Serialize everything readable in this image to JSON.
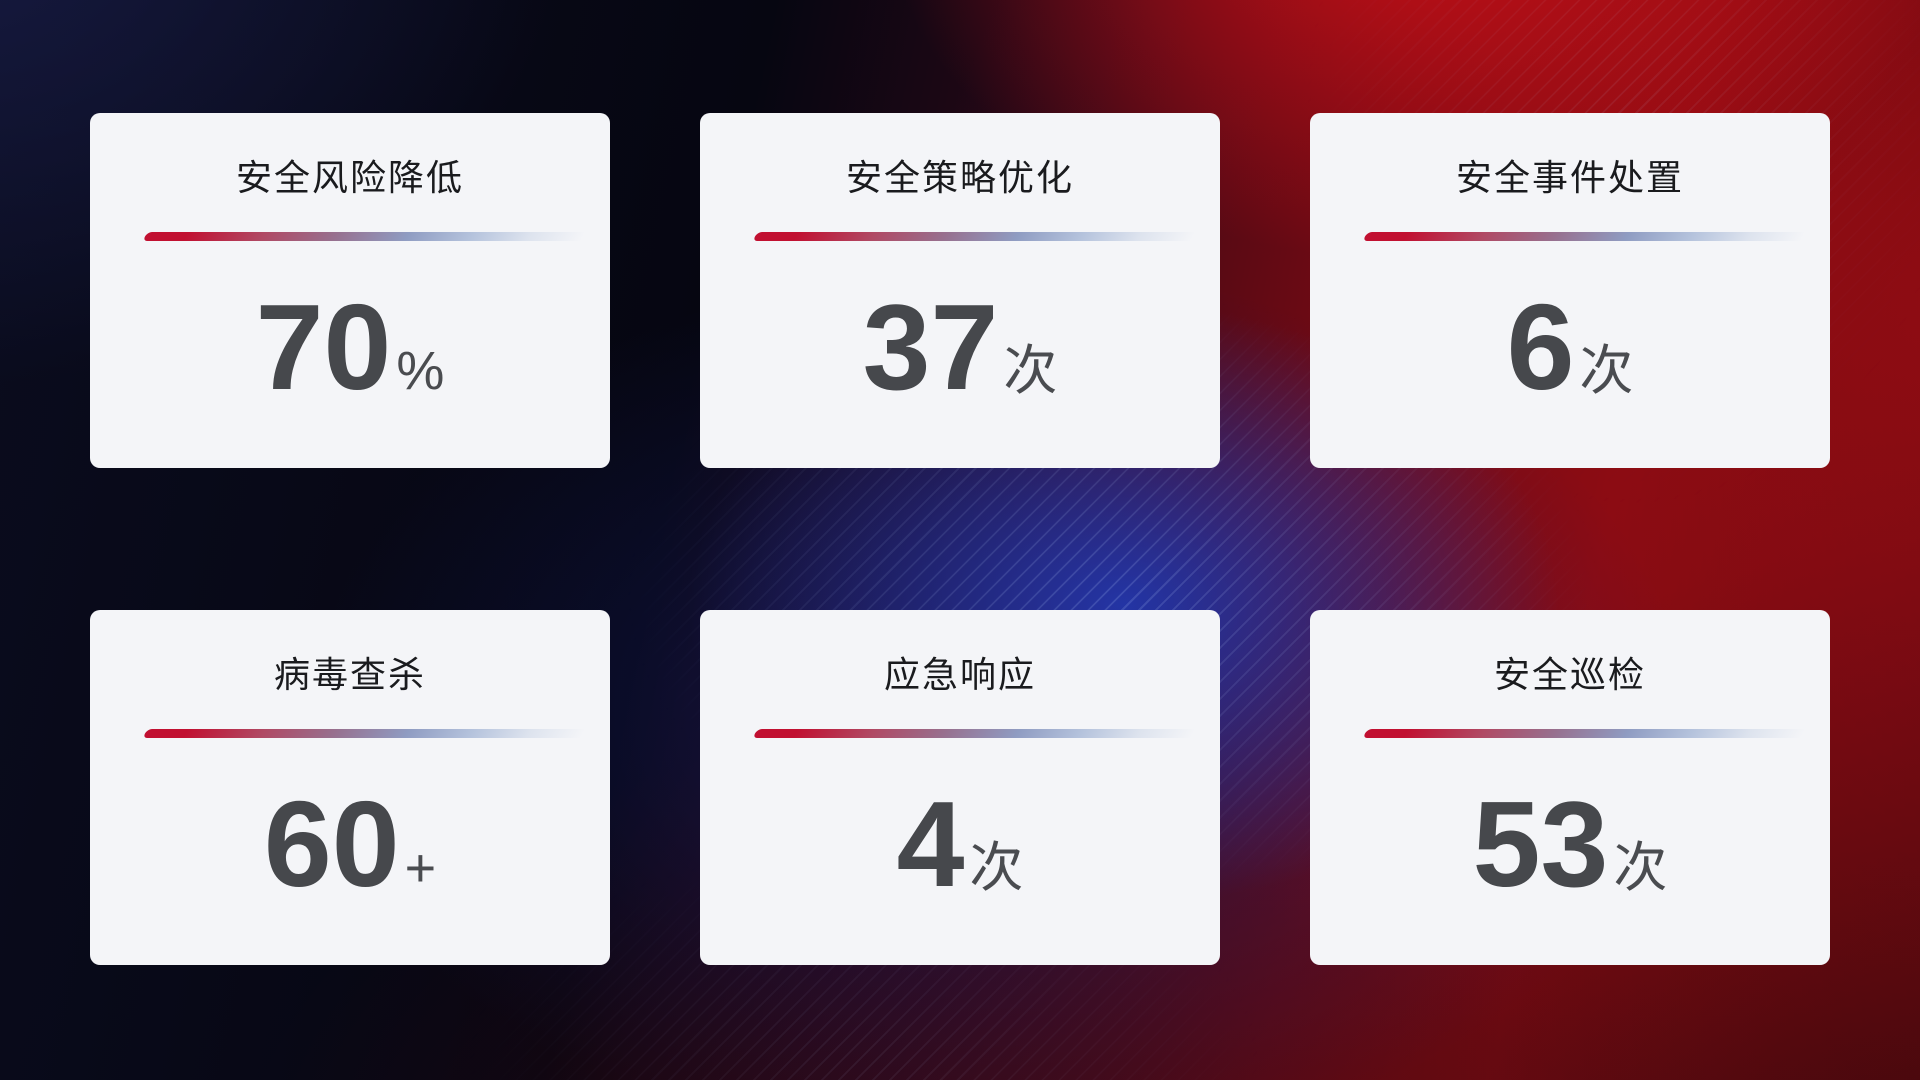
{
  "cards": [
    {
      "title": "安全风险降低",
      "value": "70",
      "unit": "%"
    },
    {
      "title": "安全策略优化",
      "value": "37",
      "unit": "次"
    },
    {
      "title": "安全事件处置",
      "value": "6",
      "unit": "次"
    },
    {
      "title": "病毒查杀",
      "value": "60",
      "unit": "+"
    },
    {
      "title": "应急响应",
      "value": "4",
      "unit": "次"
    },
    {
      "title": "安全巡检",
      "value": "53",
      "unit": "次"
    }
  ],
  "colors": {
    "card_background": "#f4f5f8",
    "title_text": "#1a1b1e",
    "value_text": "#46484c",
    "divider_red": "#c11031",
    "divider_blue": "#9fafd3",
    "background_navy": "#0a0c1d",
    "background_red": "#8c0c14",
    "background_blue_glow": "#2236aa"
  }
}
